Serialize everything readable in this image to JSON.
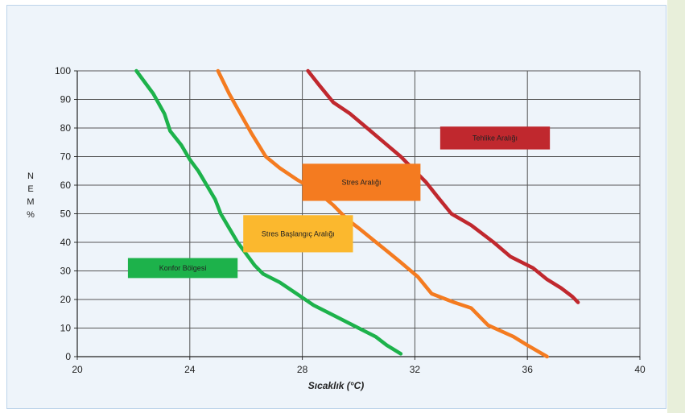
{
  "chart_data": {
    "type": "line",
    "xlabel": "Sıcaklık (°C)",
    "ylabel_chars": [
      "N",
      "E",
      "M",
      "%"
    ],
    "xlim": [
      20,
      40
    ],
    "ylim": [
      0,
      100
    ],
    "x_ticks": [
      20,
      24,
      28,
      32,
      36,
      40
    ],
    "y_ticks": [
      0,
      10,
      20,
      30,
      40,
      50,
      60,
      70,
      80,
      90,
      100
    ],
    "grid": true,
    "series": [
      {
        "color": "#1db24b",
        "points": [
          [
            22.1,
            100
          ],
          [
            22.7,
            92
          ],
          [
            23.1,
            85
          ],
          [
            23.3,
            79
          ],
          [
            23.7,
            74
          ],
          [
            24.0,
            69
          ],
          [
            24.3,
            65
          ],
          [
            24.6,
            60
          ],
          [
            24.9,
            55
          ],
          [
            25.1,
            50
          ],
          [
            25.4,
            45
          ],
          [
            25.7,
            40
          ],
          [
            26.0,
            36
          ],
          [
            26.3,
            32
          ],
          [
            26.6,
            29
          ],
          [
            27.2,
            26
          ],
          [
            27.8,
            22
          ],
          [
            28.4,
            18
          ],
          [
            29.0,
            15
          ],
          [
            29.6,
            12
          ],
          [
            30.0,
            10
          ],
          [
            30.6,
            7
          ],
          [
            31.0,
            4
          ],
          [
            31.5,
            1
          ]
        ]
      },
      {
        "color": "#f47b20",
        "points": [
          [
            25.0,
            100
          ],
          [
            25.4,
            92
          ],
          [
            25.8,
            85
          ],
          [
            26.2,
            78
          ],
          [
            26.7,
            70
          ],
          [
            27.2,
            66
          ],
          [
            27.8,
            62
          ],
          [
            28.5,
            58
          ],
          [
            29.1,
            53
          ],
          [
            29.6,
            48
          ],
          [
            30.0,
            45
          ],
          [
            30.5,
            41
          ],
          [
            31.0,
            37
          ],
          [
            31.5,
            33
          ],
          [
            32.1,
            28
          ],
          [
            32.6,
            22
          ],
          [
            33.4,
            19
          ],
          [
            34.0,
            17
          ],
          [
            34.6,
            11
          ],
          [
            35.5,
            7
          ],
          [
            36.0,
            4
          ],
          [
            36.7,
            0
          ]
        ]
      },
      {
        "color": "#c0282e",
        "points": [
          [
            28.2,
            100
          ],
          [
            28.6,
            95
          ],
          [
            29.1,
            89
          ],
          [
            29.7,
            85
          ],
          [
            30.3,
            80
          ],
          [
            30.9,
            75
          ],
          [
            31.5,
            70
          ],
          [
            32.0,
            65
          ],
          [
            32.4,
            61
          ],
          [
            32.8,
            56
          ],
          [
            33.3,
            50
          ],
          [
            34.0,
            46
          ],
          [
            34.8,
            40
          ],
          [
            35.4,
            35
          ],
          [
            36.2,
            31
          ],
          [
            36.7,
            27
          ],
          [
            37.2,
            24
          ],
          [
            37.6,
            21
          ],
          [
            37.8,
            19
          ]
        ]
      }
    ],
    "zones": [
      {
        "label": "Konfor Bölgesi",
        "color": "#1db24b",
        "x0": 21.8,
        "x1": 25.7,
        "y0": 27.5,
        "y1": 34.5
      },
      {
        "label": "Stres Başlangıç Aralığı",
        "color": "#fbb82e",
        "x0": 25.9,
        "x1": 29.8,
        "y0": 36.5,
        "y1": 49.5
      },
      {
        "label": "Stres Aralığı",
        "color": "#f47b20",
        "x0": 28.0,
        "x1": 32.2,
        "y0": 54.5,
        "y1": 67.5
      },
      {
        "label": "Tehlike Aralığı",
        "color": "#c0282e",
        "x0": 32.9,
        "x1": 36.8,
        "y0": 72.5,
        "y1": 80.5
      }
    ]
  }
}
